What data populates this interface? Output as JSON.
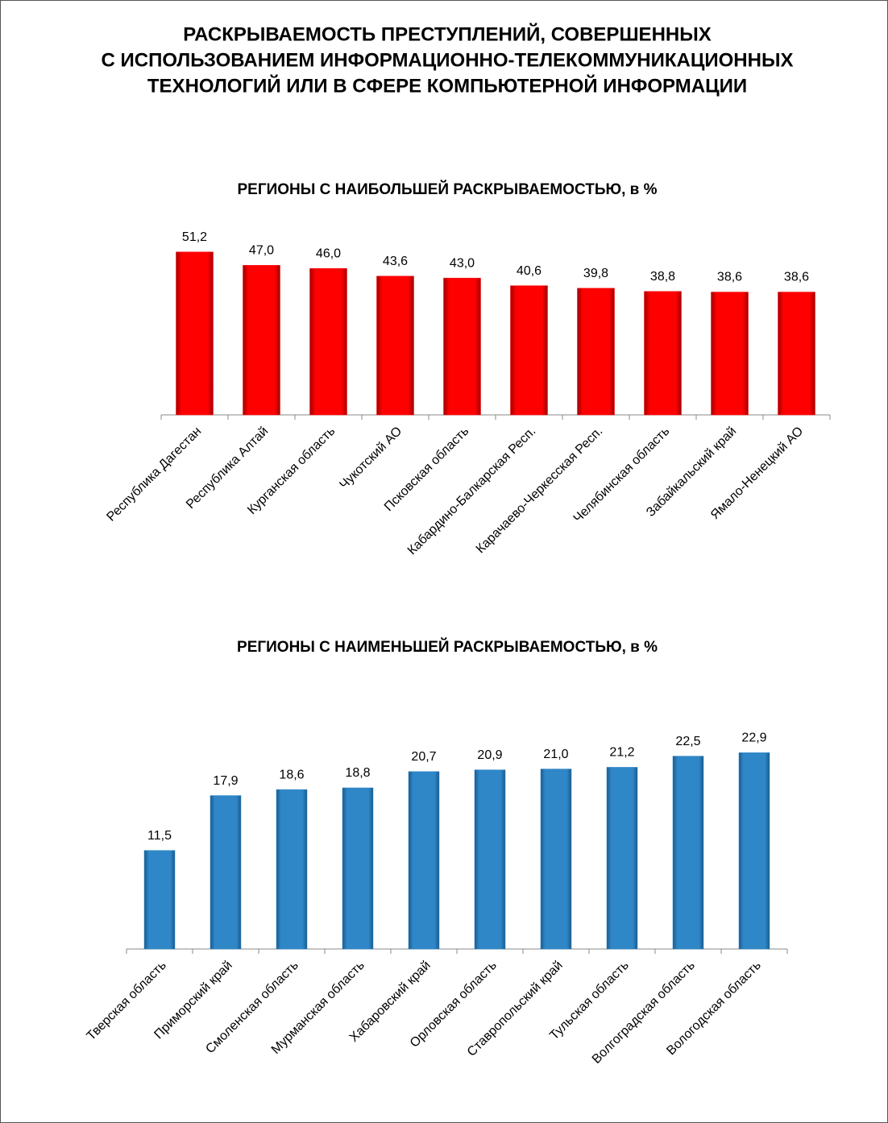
{
  "title": [
    "РАСКРЫВАЕМОСТЬ ПРЕСТУПЛЕНИЙ, СОВЕРШЕННЫХ",
    "С ИСПОЛЬЗОВАНИЕМ ИНФОРМАЦИОННО-ТЕЛЕКОММУНИКАЦИОННЫХ",
    "ТЕХНОЛОГИЙ ИЛИ В СФЕРЕ КОМПЬЮТЕРНОЙ ИНФОРМАЦИИ"
  ],
  "chart_data": [
    {
      "type": "bar",
      "title": "РЕГИОНЫ С НАИБОЛЬШЕЙ РАСКРЫВАЕМОСТЬЮ, в %",
      "categories": [
        "Республика Дагестан",
        "Республика Алтай",
        "Курганская область",
        "Чукотский АО",
        "Псковская область",
        "Кабардино-Балкарская Респ.",
        "Карачаево-Черкесская Респ.",
        "Челябинская область",
        "Забайкальский край",
        "Ямало-Ненецкий АО"
      ],
      "values": [
        51.2,
        47.0,
        46.0,
        43.6,
        43.0,
        40.6,
        39.8,
        38.8,
        38.6,
        38.6
      ],
      "value_labels": [
        "51,2",
        "47,0",
        "46,0",
        "43,6",
        "43,0",
        "40,6",
        "39,8",
        "38,8",
        "38,6",
        "38,6"
      ],
      "color": "#ff0000",
      "ylim": [
        0,
        60
      ]
    },
    {
      "type": "bar",
      "title": "РЕГИОНЫ С НАИМЕНЬШЕЙ РАСКРЫВАЕМОСТЬЮ, в %",
      "categories": [
        "Тверская область",
        "Приморский край",
        "Смоленская область",
        "Мурманская область",
        "Хабаровский край",
        "Орловская область",
        "Ставропольский край",
        "Тульская область",
        "Волгоградская область",
        "Вологодская область"
      ],
      "values": [
        11.5,
        17.9,
        18.6,
        18.8,
        20.7,
        20.9,
        21.0,
        21.2,
        22.5,
        22.9
      ],
      "value_labels": [
        "11,5",
        "17,9",
        "18,6",
        "18,8",
        "20,7",
        "20,9",
        "21,0",
        "21,2",
        "22,5",
        "22,9"
      ],
      "color": "#2f87c8",
      "ylim": [
        0,
        25
      ]
    }
  ]
}
